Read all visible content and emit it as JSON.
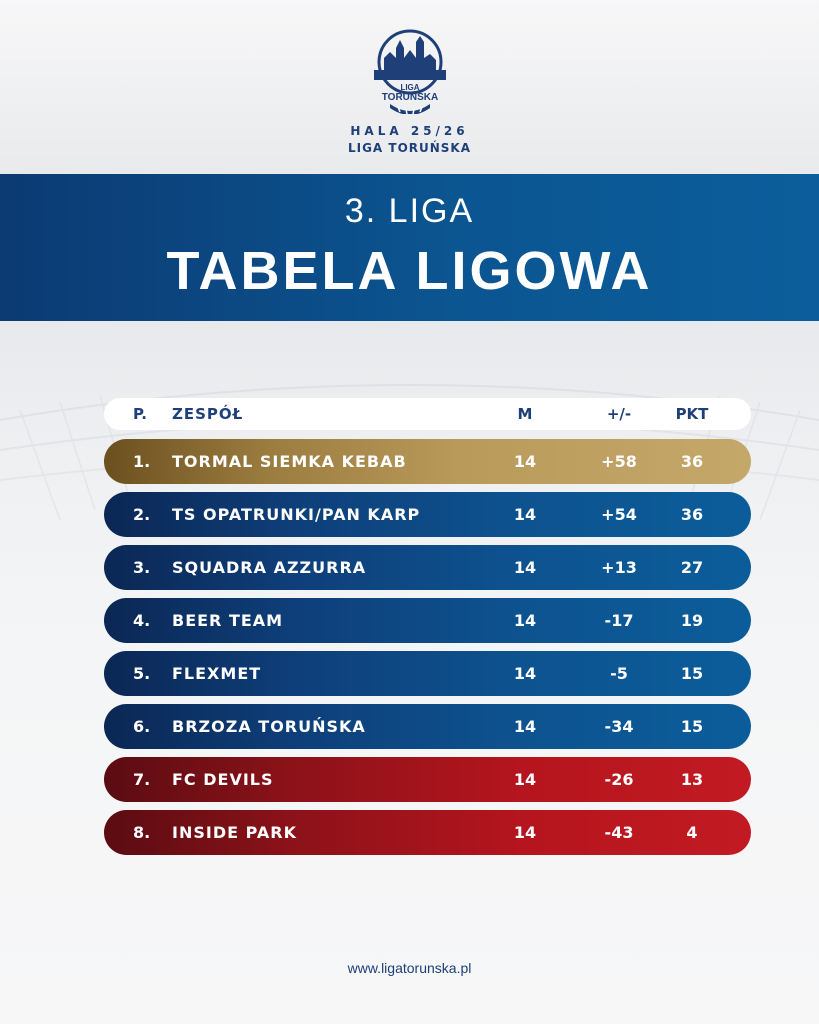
{
  "header": {
    "logo_text_1": "LIGA",
    "logo_text_2": "TORUŃSKA",
    "season": "HALA 25/26",
    "league_name": "LIGA TORUŃSKA"
  },
  "banner": {
    "league": "3. LIGA",
    "title": "TABELA LIGOWA"
  },
  "table": {
    "columns": {
      "pos": "P.",
      "team": "ZESPÓŁ",
      "matches": "M",
      "diff": "+/-",
      "points": "PKT"
    },
    "rows": [
      {
        "pos": "1.",
        "team": "TORMAL SIEMKA KEBAB",
        "m": "14",
        "diff": "+58",
        "pkt": "36",
        "style": "gold"
      },
      {
        "pos": "2.",
        "team": "TS OPATRUNKI/PAN KARP",
        "m": "14",
        "diff": "+54",
        "pkt": "36",
        "style": "blue"
      },
      {
        "pos": "3.",
        "team": "SQUADRA AZZURRA",
        "m": "14",
        "diff": "+13",
        "pkt": "27",
        "style": "blue"
      },
      {
        "pos": "4.",
        "team": "BEER TEAM",
        "m": "14",
        "diff": "-17",
        "pkt": "19",
        "style": "blue"
      },
      {
        "pos": "5.",
        "team": "FLEXMET",
        "m": "14",
        "diff": "-5",
        "pkt": "15",
        "style": "blue"
      },
      {
        "pos": "6.",
        "team": "BRZOZA TORUŃSKA",
        "m": "14",
        "diff": "-34",
        "pkt": "15",
        "style": "blue"
      },
      {
        "pos": "7.",
        "team": "FC DEVILS",
        "m": "14",
        "diff": "-26",
        "pkt": "13",
        "style": "red"
      },
      {
        "pos": "8.",
        "team": "INSIDE PARK",
        "m": "14",
        "diff": "-43",
        "pkt": "4",
        "style": "red"
      }
    ]
  },
  "footer": {
    "url": "www.ligatorunska.pl"
  },
  "colors": {
    "brand_blue": "#1e3f78",
    "banner_blue": "#0b5591",
    "gold": "#b99a5b",
    "red": "#b5151e"
  }
}
